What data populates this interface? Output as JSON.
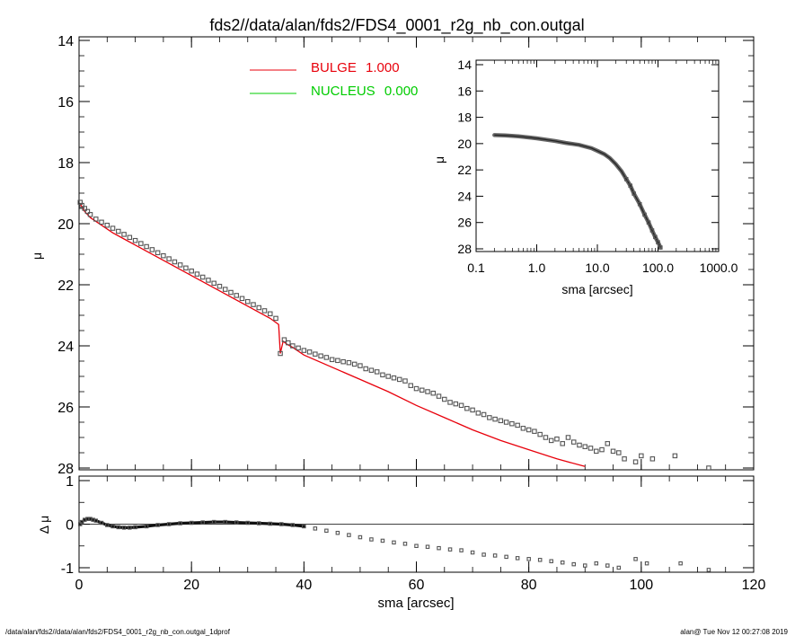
{
  "title": "fds2//data/alan/fds2/FDS4_0001_r2g_nb_con.outgal",
  "footer_left": "/data/alan/fds2//data/alan/fds2/FDS4_0001_r2g_nb_con.outgal_1dprof",
  "footer_right": "alan@  Tue Nov 12 00:27:08 2019",
  "colors": {
    "bulge": "#e8000b",
    "nucleus": "#00cc00",
    "data": "#555555"
  },
  "chart_data": [
    {
      "type": "scatter",
      "panel": "main",
      "xlabel": "sma [arcsec]",
      "ylabel": "μ",
      "xlim": [
        0,
        120
      ],
      "ylim": [
        28,
        14
      ],
      "y_ticks": [
        "14",
        "16",
        "18",
        "20",
        "22",
        "24",
        "26",
        "28"
      ],
      "legend": [
        {
          "name": "BULGE",
          "value": "1.000"
        },
        {
          "name": "NUCLEUS",
          "value": "0.000"
        }
      ],
      "legend_position": "top-center",
      "data_points": {
        "x": [
          0.2,
          0.5,
          1,
          1.5,
          2,
          3,
          4,
          5,
          6,
          7,
          8,
          9,
          10,
          11,
          12,
          13,
          14,
          15,
          16,
          17,
          18,
          19,
          20,
          21,
          22,
          23,
          24,
          25,
          26,
          27,
          28,
          29,
          30,
          31,
          32,
          33,
          34,
          35,
          35.8,
          36.5,
          37.2,
          38,
          39,
          40,
          41,
          42,
          43,
          44,
          45,
          46,
          47,
          48,
          49,
          50,
          51,
          52,
          53,
          54,
          55,
          56,
          57,
          58,
          59,
          60,
          61,
          62,
          63,
          64,
          65,
          66,
          67,
          68,
          69,
          70,
          71,
          72,
          73,
          74,
          75,
          76,
          77,
          78,
          79,
          80,
          81,
          82,
          83,
          84,
          85,
          86,
          87,
          88,
          89,
          90,
          91,
          92,
          93,
          94,
          95,
          96,
          97,
          99,
          100,
          102,
          106,
          112
        ],
        "y": [
          19.3,
          19.4,
          19.5,
          19.6,
          19.7,
          19.85,
          19.95,
          20.05,
          20.15,
          20.25,
          20.35,
          20.45,
          20.55,
          20.65,
          20.75,
          20.85,
          20.95,
          21.05,
          21.15,
          21.25,
          21.35,
          21.45,
          21.55,
          21.65,
          21.75,
          21.85,
          21.95,
          22.05,
          22.15,
          22.25,
          22.35,
          22.45,
          22.55,
          22.65,
          22.75,
          22.85,
          22.95,
          23.1,
          24.25,
          23.8,
          23.9,
          24.0,
          24.07,
          24.15,
          24.2,
          24.27,
          24.33,
          24.38,
          24.45,
          24.48,
          24.52,
          24.55,
          24.6,
          24.65,
          24.75,
          24.8,
          24.85,
          24.95,
          25.0,
          25.05,
          25.1,
          25.15,
          25.3,
          25.4,
          25.45,
          25.5,
          25.55,
          25.65,
          25.75,
          25.85,
          25.9,
          25.95,
          26.05,
          26.1,
          26.2,
          26.25,
          26.35,
          26.4,
          26.45,
          26.5,
          26.55,
          26.6,
          26.7,
          26.75,
          26.8,
          26.9,
          27.0,
          27.1,
          27.05,
          27.2,
          27.0,
          27.15,
          27.25,
          27.3,
          27.35,
          27.45,
          27.4,
          27.2,
          27.45,
          27.5,
          27.7,
          27.8,
          27.6,
          27.7,
          27.6,
          28.0
        ]
      },
      "bulge_model": {
        "x": [
          0.2,
          1,
          2,
          4,
          6,
          8,
          10,
          15,
          20,
          25,
          30,
          34,
          35.5,
          35.8,
          36.3,
          37,
          38,
          40,
          45,
          50,
          55,
          60,
          65,
          70,
          75,
          80,
          85,
          90
        ],
        "y": [
          19.35,
          19.6,
          19.8,
          20.05,
          20.3,
          20.5,
          20.7,
          21.2,
          21.7,
          22.2,
          22.7,
          23.1,
          23.3,
          24.25,
          23.85,
          23.95,
          24.05,
          24.3,
          24.7,
          25.1,
          25.5,
          25.95,
          26.35,
          26.75,
          27.1,
          27.4,
          27.7,
          27.95
        ]
      }
    },
    {
      "type": "scatter",
      "panel": "inset",
      "xlabel": "sma [arcsec]",
      "ylabel": "μ",
      "x_scale": "log",
      "xlim": [
        0.1,
        1000
      ],
      "ylim": [
        28,
        14
      ],
      "x_ticks": [
        "0.1",
        "1.0",
        "10.0",
        "100.0",
        "1000.0"
      ],
      "y_ticks": [
        "14",
        "16",
        "18",
        "20",
        "22",
        "24",
        "26",
        "28"
      ],
      "profile": {
        "x": [
          0.2,
          0.3,
          0.5,
          0.8,
          1,
          2,
          3,
          5,
          8,
          10,
          13,
          16,
          20,
          25,
          30,
          35,
          40,
          50,
          60,
          70,
          80,
          90,
          100,
          110
        ],
        "y": [
          19.35,
          19.38,
          19.45,
          19.55,
          19.6,
          19.8,
          19.95,
          20.1,
          20.35,
          20.55,
          20.8,
          21.1,
          21.55,
          22.1,
          22.7,
          23.2,
          23.8,
          24.6,
          25.4,
          26.0,
          26.6,
          27.1,
          27.5,
          27.9
        ]
      }
    },
    {
      "type": "scatter",
      "panel": "residual",
      "xlabel": "sma [arcsec]",
      "ylabel": "Δ μ",
      "xlim": [
        0,
        120
      ],
      "ylim": [
        -1.05,
        1.05
      ],
      "x_ticks": [
        "0",
        "20",
        "40",
        "60",
        "80",
        "100",
        "120"
      ],
      "y_ticks": [
        "1",
        "0",
        "-1"
      ],
      "residual": {
        "x": [
          0.2,
          0.5,
          1,
          1.5,
          2,
          2.5,
          3,
          4,
          5,
          6,
          7,
          8,
          9,
          10,
          12,
          14,
          16,
          18,
          20,
          22,
          24,
          26,
          28,
          30,
          32,
          34,
          36,
          38,
          40,
          42,
          44,
          46,
          48,
          50,
          52,
          54,
          56,
          58,
          60,
          62,
          64,
          66,
          68,
          70,
          72,
          74,
          76,
          78,
          80,
          82,
          84,
          86,
          88,
          90,
          92,
          94,
          96,
          99,
          101,
          107,
          112
        ],
        "y": [
          0.0,
          0.05,
          0.1,
          0.12,
          0.12,
          0.1,
          0.08,
          0.03,
          -0.02,
          -0.05,
          -0.07,
          -0.08,
          -0.08,
          -0.07,
          -0.05,
          -0.02,
          0.0,
          0.02,
          0.03,
          0.04,
          0.05,
          0.05,
          0.04,
          0.03,
          0.02,
          0.01,
          0.0,
          -0.02,
          -0.05,
          -0.1,
          -0.15,
          -0.2,
          -0.25,
          -0.3,
          -0.35,
          -0.38,
          -0.42,
          -0.45,
          -0.5,
          -0.52,
          -0.55,
          -0.58,
          -0.6,
          -0.65,
          -0.7,
          -0.72,
          -0.75,
          -0.78,
          -0.8,
          -0.82,
          -0.85,
          -0.88,
          -0.92,
          -0.95,
          -0.9,
          -0.95,
          -1.0,
          -0.8,
          -0.9,
          -0.9,
          -1.05
        ]
      }
    }
  ]
}
